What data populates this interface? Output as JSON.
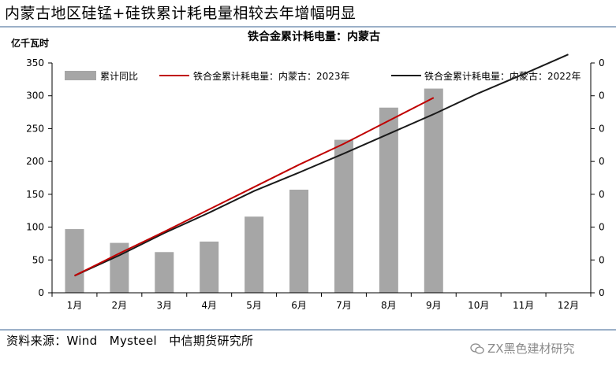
{
  "page": {
    "headline": "内蒙古地区硅锰+硅铁累计耗电量相较去年增幅明显",
    "source": "资料来源：Wind　Mysteel　中信期货研究所",
    "watermark": "ZX黑色建材研究"
  },
  "colors": {
    "bar": "#a6a6a6",
    "line2023": "#c00000",
    "line2022": "#1a1a1a",
    "rule": "#9bb0c8"
  },
  "chart_data": {
    "type": "bar",
    "title": "铁合金累计耗电量：内蒙古",
    "ylabel": "亿千瓦时",
    "categories": [
      "1月",
      "2月",
      "3月",
      "4月",
      "5月",
      "6月",
      "7月",
      "8月",
      "9月",
      "10月",
      "11月",
      "12月"
    ],
    "ylim": [
      0,
      350
    ],
    "yticks": [
      0,
      50,
      100,
      150,
      200,
      250,
      300,
      350
    ],
    "right_ticks": [
      "0",
      "0",
      "0",
      "0",
      "0",
      "0",
      "0",
      "0"
    ],
    "legend_position": "top",
    "grid": false,
    "series": [
      {
        "name": "累计同比",
        "type": "bar",
        "axis": "left",
        "values": [
          97,
          76,
          62,
          78,
          116,
          157,
          233,
          282,
          311,
          null,
          null,
          null
        ]
      },
      {
        "name": "铁合金累计耗电量：内蒙古：2023年",
        "type": "line",
        "axis": "left",
        "values": [
          26,
          60,
          93,
          127,
          161,
          195,
          227,
          262,
          297,
          null,
          null,
          null
        ]
      },
      {
        "name": "铁合金累计耗电量：内蒙古：2022年",
        "type": "line",
        "axis": "left",
        "values": [
          26,
          57,
          91,
          122,
          155,
          183,
          212,
          242,
          272,
          304,
          333,
          363
        ]
      }
    ]
  }
}
